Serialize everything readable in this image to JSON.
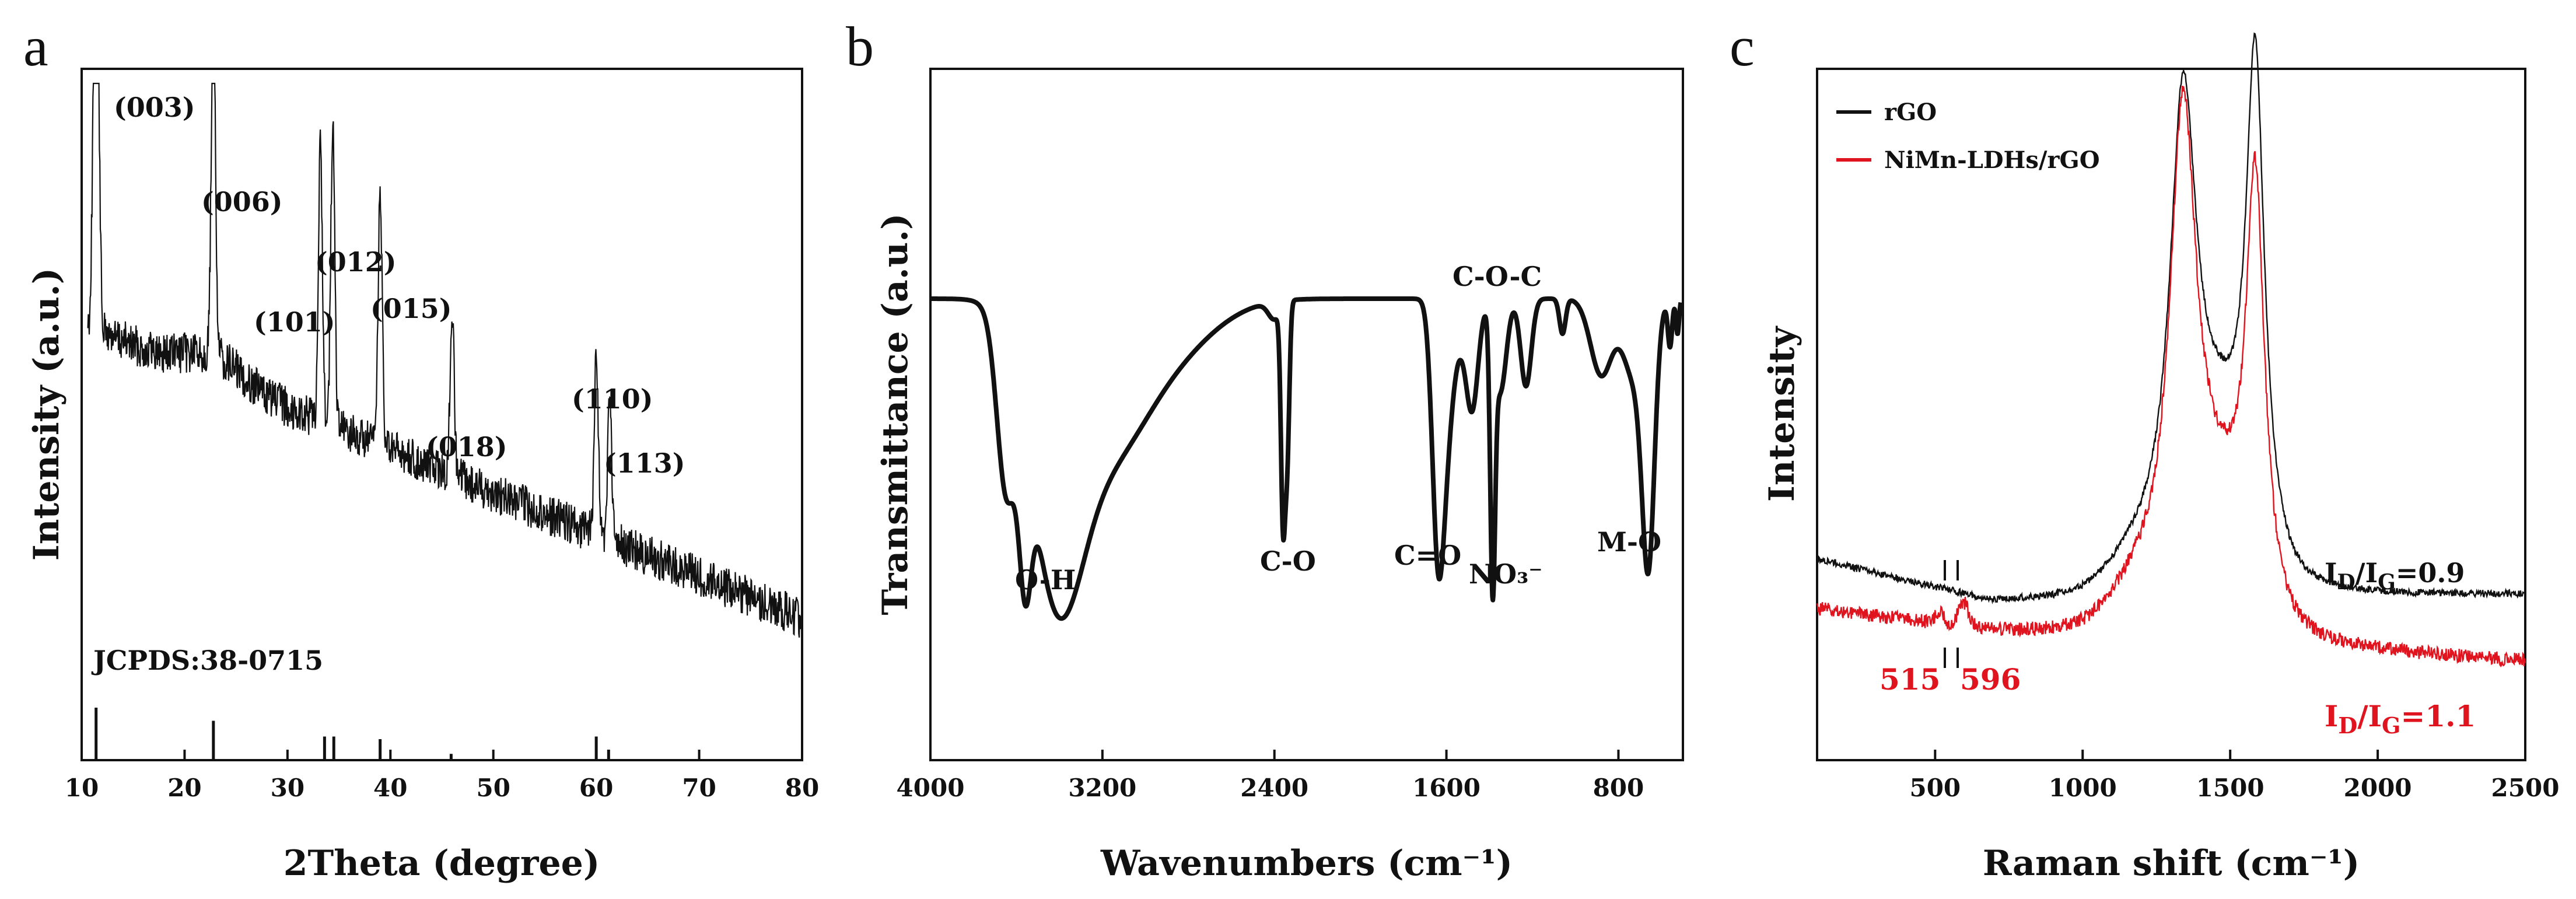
{
  "chart_data": [
    {
      "panel": "a",
      "type": "line",
      "xlabel": "2Theta (degree)",
      "ylabel": "Intensity (a.u.)",
      "xlim": [
        10,
        80
      ],
      "xticks": [
        "10",
        "20",
        "30",
        "40",
        "50",
        "60",
        "70",
        "80"
      ],
      "peaks": [
        {
          "label": "(003)",
          "x": 11.4,
          "rel_height": 0.95
        },
        {
          "label": "(006)",
          "x": 22.8,
          "rel_height": 0.77
        },
        {
          "label": "(101)",
          "x": 33.2,
          "rel_height": 0.62
        },
        {
          "label": "(012)",
          "x": 34.4,
          "rel_height": 0.68
        },
        {
          "label": "(015)",
          "x": 39.0,
          "rel_height": 0.6
        },
        {
          "label": "(018)",
          "x": 46.0,
          "rel_height": 0.4
        },
        {
          "label": "(110)",
          "x": 60.0,
          "rel_height": 0.47
        },
        {
          "label": "(113)",
          "x": 61.3,
          "rel_height": 0.36
        }
      ],
      "reference_label": "JCPDS:38-0715",
      "reference_lines": [
        {
          "x": 11.4,
          "h": 1.0
        },
        {
          "x": 22.8,
          "h": 0.75
        },
        {
          "x": 33.6,
          "h": 0.45
        },
        {
          "x": 34.5,
          "h": 0.45
        },
        {
          "x": 39.0,
          "h": 0.4
        },
        {
          "x": 45.9,
          "h": 0.12
        },
        {
          "x": 60.0,
          "h": 0.45
        },
        {
          "x": 61.2,
          "h": 0.2
        }
      ]
    },
    {
      "panel": "b",
      "type": "line",
      "xlabel": "Wavenumbers (cm⁻¹)",
      "ylabel": "Transmittance (a.u.)",
      "xlim": [
        4000,
        500
      ],
      "xticks": [
        "4000",
        "3200",
        "2400",
        "1600",
        "800"
      ],
      "bands": [
        {
          "label": "O-H",
          "x": 3420
        },
        {
          "label": "C-O",
          "x": 2360
        },
        {
          "label": "C=O",
          "x": 1630
        },
        {
          "label": "NO₃⁻",
          "x": 1385
        },
        {
          "label": "C-O-C",
          "x": 1050
        },
        {
          "label": "M-O",
          "x": 660
        }
      ]
    },
    {
      "panel": "c",
      "type": "line",
      "xlabel": "Raman shift (cm⁻¹)",
      "ylabel": "Intensity",
      "xlim": [
        100,
        2500
      ],
      "xticks": [
        "500",
        "1000",
        "1500",
        "2000",
        "2500"
      ],
      "series": [
        {
          "name": "rGO",
          "color": "#111111",
          "D_band": 1340,
          "G_band": 1585,
          "ratio_label": "I",
          "ratio_sub_D": "D",
          "ratio_sub_G": "G",
          "ratio_value": "=0.9"
        },
        {
          "name": "NiMn-LDHs/rGO",
          "color": "#e0141e",
          "D_band": 1340,
          "G_band": 1585,
          "ratio_label": "I",
          "ratio_sub_D": "D",
          "ratio_sub_G": "G",
          "ratio_value": "=1.1"
        }
      ],
      "marker_labels": [
        "515",
        "596"
      ]
    }
  ],
  "panel_letters": [
    "a",
    "b",
    "c"
  ]
}
